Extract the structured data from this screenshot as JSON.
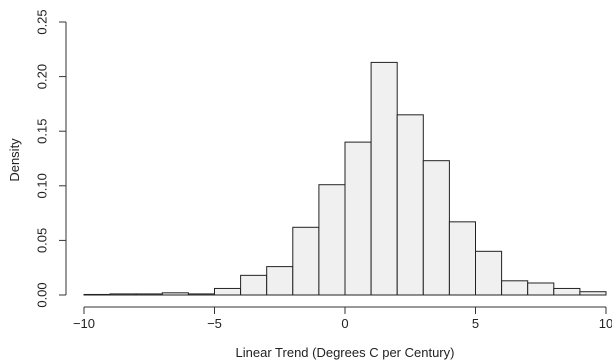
{
  "chart_data": {
    "type": "bar",
    "title": "",
    "xlabel": "Linear Trend (Degrees C per Century)",
    "ylabel": "Density",
    "xlim": [
      -10,
      10
    ],
    "ylim": [
      0,
      0.25
    ],
    "x_ticks": [
      -10,
      -5,
      0,
      5,
      10
    ],
    "x_tick_labels": [
      "−10",
      "−5",
      "0",
      "5",
      "10"
    ],
    "y_ticks": [
      0,
      0.05,
      0.1,
      0.15,
      0.2,
      0.25
    ],
    "y_tick_labels": [
      "0.00",
      "0.05",
      "0.10",
      "0.15",
      "0.20",
      "0.25"
    ],
    "grid": false,
    "bar_fill": "#f0f0f0",
    "bar_stroke": "#222222",
    "bins": [
      {
        "x0": -10,
        "x1": -9,
        "value": 0.0005
      },
      {
        "x0": -9,
        "x1": -8,
        "value": 0.001
      },
      {
        "x0": -8,
        "x1": -7,
        "value": 0.001
      },
      {
        "x0": -7,
        "x1": -6,
        "value": 0.002
      },
      {
        "x0": -6,
        "x1": -5,
        "value": 0.001
      },
      {
        "x0": -5,
        "x1": -4,
        "value": 0.006
      },
      {
        "x0": -4,
        "x1": -3,
        "value": 0.018
      },
      {
        "x0": -3,
        "x1": -2,
        "value": 0.026
      },
      {
        "x0": -2,
        "x1": -1,
        "value": 0.062
      },
      {
        "x0": -1,
        "x1": 0,
        "value": 0.101
      },
      {
        "x0": 0,
        "x1": 1,
        "value": 0.14
      },
      {
        "x0": 1,
        "x1": 2,
        "value": 0.213
      },
      {
        "x0": 2,
        "x1": 3,
        "value": 0.165
      },
      {
        "x0": 3,
        "x1": 4,
        "value": 0.123
      },
      {
        "x0": 4,
        "x1": 5,
        "value": 0.067
      },
      {
        "x0": 5,
        "x1": 6,
        "value": 0.04
      },
      {
        "x0": 6,
        "x1": 7,
        "value": 0.013
      },
      {
        "x0": 7,
        "x1": 8,
        "value": 0.011
      },
      {
        "x0": 8,
        "x1": 9,
        "value": 0.006
      },
      {
        "x0": 9,
        "x1": 10,
        "value": 0.003
      }
    ]
  }
}
